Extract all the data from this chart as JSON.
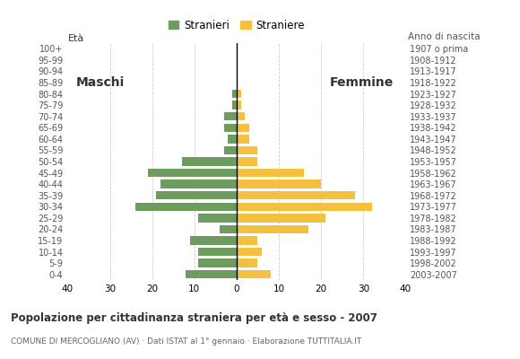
{
  "age_groups": [
    "0-4",
    "5-9",
    "10-14",
    "15-19",
    "20-24",
    "25-29",
    "30-34",
    "35-39",
    "40-44",
    "45-49",
    "50-54",
    "55-59",
    "60-64",
    "65-69",
    "70-74",
    "75-79",
    "80-84",
    "85-89",
    "90-94",
    "95-99",
    "100+"
  ],
  "birth_years": [
    "2003-2007",
    "1998-2002",
    "1993-1997",
    "1988-1992",
    "1983-1987",
    "1978-1982",
    "1973-1977",
    "1968-1972",
    "1963-1967",
    "1958-1962",
    "1953-1957",
    "1948-1952",
    "1943-1947",
    "1938-1942",
    "1933-1937",
    "1928-1932",
    "1923-1927",
    "1918-1922",
    "1913-1917",
    "1908-1912",
    "1907 o prima"
  ],
  "males": [
    12,
    9,
    9,
    11,
    4,
    9,
    24,
    19,
    18,
    21,
    13,
    3,
    2,
    3,
    3,
    1,
    1,
    0,
    0,
    0,
    0
  ],
  "females": [
    8,
    5,
    6,
    5,
    17,
    21,
    32,
    28,
    20,
    16,
    5,
    5,
    3,
    3,
    2,
    1,
    1,
    0,
    0,
    0,
    0
  ],
  "male_color": "#6e9b5e",
  "female_color": "#f5c040",
  "background_color": "#ffffff",
  "grid_color": "#cccccc",
  "title": "Popolazione per cittadinanza straniera per età e sesso - 2007",
  "subtitle": "COMUNE DI MERCOGLIANO (AV) · Dati ISTAT al 1° gennaio · Elaborazione TUTTITALIA.IT",
  "legend_stranieri": "Stranieri",
  "legend_straniere": "Straniere",
  "label_maschi": "Maschi",
  "label_femmine": "Femmine",
  "ylabel_left": "Età",
  "ylabel_right": "Anno di nascita",
  "xlim": 40,
  "bar_height": 0.75
}
